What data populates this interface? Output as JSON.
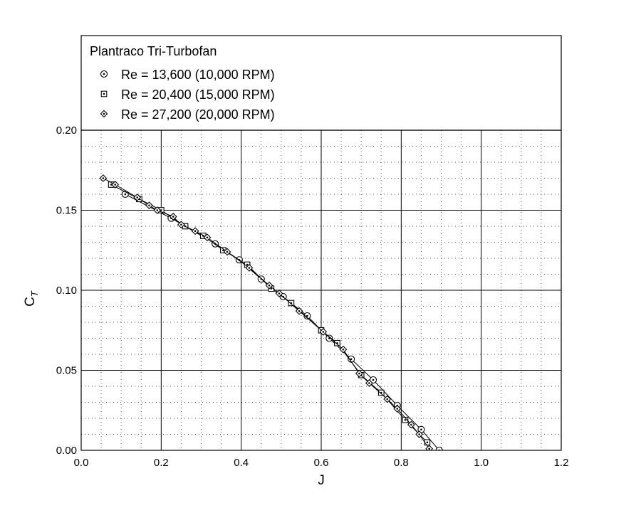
{
  "chart_data": {
    "type": "scatter",
    "title": "",
    "xlabel": "J",
    "ylabel_main": "C",
    "ylabel_sub": "T",
    "xlim": [
      0.0,
      1.2
    ],
    "ylim": [
      0.0,
      0.2
    ],
    "x_ticks": [
      "0.0",
      "0.2",
      "0.4",
      "0.6",
      "0.8",
      "1.0",
      "1.2"
    ],
    "y_ticks": [
      "0.00",
      "0.05",
      "0.10",
      "0.15",
      "0.20"
    ],
    "grid": "major solid, minor dotted",
    "legend_title": "Plantraco Tri-Turbofan",
    "legend_position": "top, above plot area",
    "series": [
      {
        "name": "Re = 13,600 (10,000 RPM)",
        "marker": "circle-dot",
        "x": [
          0.11,
          0.225,
          0.335,
          0.395,
          0.45,
          0.505,
          0.565,
          0.62,
          0.675,
          0.73,
          0.79,
          0.85,
          0.895
        ],
        "y": [
          0.16,
          0.145,
          0.129,
          0.119,
          0.107,
          0.096,
          0.084,
          0.07,
          0.057,
          0.044,
          0.028,
          0.013,
          0.0
        ]
      },
      {
        "name": "Re = 20,400 (15,000 RPM)",
        "marker": "square-dot",
        "x": [
          0.075,
          0.145,
          0.2,
          0.26,
          0.305,
          0.355,
          0.415,
          0.475,
          0.525,
          0.6,
          0.64,
          0.7,
          0.75,
          0.81,
          0.865
        ],
        "y": [
          0.166,
          0.157,
          0.15,
          0.14,
          0.134,
          0.125,
          0.116,
          0.101,
          0.092,
          0.075,
          0.067,
          0.047,
          0.036,
          0.019,
          0.005
        ]
      },
      {
        "name": "Re = 27,200 (20,000 RPM)",
        "marker": "diamond-dot",
        "x": [
          0.055,
          0.085,
          0.14,
          0.17,
          0.19,
          0.23,
          0.25,
          0.285,
          0.315,
          0.365,
          0.42,
          0.47,
          0.495,
          0.545,
          0.605,
          0.655,
          0.695,
          0.72,
          0.765,
          0.79,
          0.825,
          0.845,
          0.87
        ],
        "y": [
          0.17,
          0.166,
          0.158,
          0.153,
          0.15,
          0.146,
          0.141,
          0.137,
          0.133,
          0.124,
          0.114,
          0.103,
          0.098,
          0.087,
          0.074,
          0.063,
          0.048,
          0.042,
          0.032,
          0.026,
          0.016,
          0.01,
          0.001
        ]
      }
    ]
  }
}
